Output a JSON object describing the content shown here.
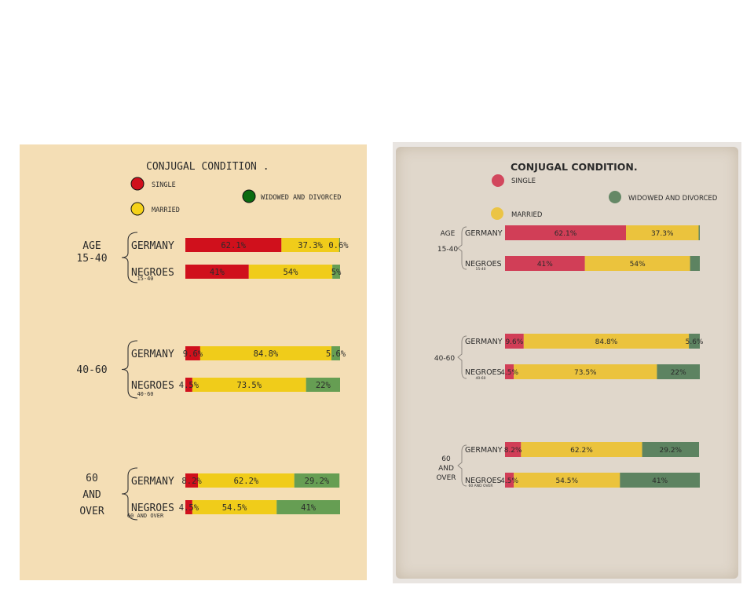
{
  "colors": {
    "single": "#d0101c",
    "married": "#f0cc1a",
    "widowed": "#669e53",
    "left_bg": "#f4deb5",
    "r_single": "#cf2e4a",
    "r_married": "#ecc12e",
    "r_widowed": "#4f7a55",
    "r_ink": "#5a5550",
    "r_paper": "#e0d7cb"
  },
  "left": {
    "title": "CONJUGAL CONDITION .",
    "legend": [
      {
        "key": "single",
        "label": "SINGLE",
        "color": "#d0101c"
      },
      {
        "key": "married",
        "label": "MARRIED",
        "color": "#f5d21a"
      },
      {
        "key": "widowed",
        "label": "WIDOWED AND DIVORCED",
        "color": "#0b6b10"
      }
    ],
    "groups": [
      {
        "label_lines": [
          "AGE",
          "15-40"
        ],
        "sublabel": "15-40"
      },
      {
        "label_lines": [
          "40-60"
        ],
        "sublabel": "40-60"
      },
      {
        "label_lines": [
          "60",
          "AND",
          "OVER"
        ],
        "sublabel": "60 AND OVER"
      }
    ]
  },
  "right": {
    "title": "CONJUGAL CONDITION.",
    "legend": [
      {
        "key": "single",
        "label": "SINGLE"
      },
      {
        "key": "widowed",
        "label": "WIDOWED AND DIVORCED"
      },
      {
        "key": "married",
        "label": "MARRIED"
      }
    ],
    "groups": [
      {
        "label_lines": [
          "AGE",
          "15-40"
        ],
        "sublabel": "15-40"
      },
      {
        "label_lines": [
          "40-60"
        ],
        "sublabel": "40-60"
      },
      {
        "label_lines": [
          "60",
          "AND",
          "OVER"
        ],
        "sublabel": "60 AND OVER"
      }
    ],
    "labels": [
      [
        "62.1%",
        "37.3%",
        ""
      ],
      [
        "41%",
        "54%",
        ""
      ],
      [
        "9.6%",
        "84.8%",
        "5.6%"
      ],
      [
        "4.5%",
        "73.5%",
        "22%"
      ],
      [
        "8.2%",
        "62.2%",
        "29.2%"
      ],
      [
        "4.5%",
        "54.5%",
        "41%"
      ]
    ]
  },
  "chart_data": [
    {
      "type": "bar",
      "title": "CONJUGAL CONDITION .",
      "stacked": true,
      "orientation": "horizontal",
      "categories": [
        "GERMANY",
        "NEGROES",
        "GERMANY",
        "NEGROES",
        "GERMANY",
        "NEGROES"
      ],
      "series": [
        {
          "name": "SINGLE",
          "values": [
            62.1,
            41,
            9.6,
            4.5,
            8.2,
            4.5
          ]
        },
        {
          "name": "MARRIED",
          "values": [
            37.3,
            54,
            84.8,
            73.5,
            62.2,
            54.5
          ]
        },
        {
          "name": "WIDOWED AND DIVORCED",
          "values": [
            0.6,
            5,
            5.6,
            22,
            29.2,
            41
          ]
        }
      ],
      "labels": [
        [
          "62.1%",
          "37.3%",
          "0.6%"
        ],
        [
          "41%",
          "54%",
          "5%"
        ],
        [
          "9.6%",
          "84.8%",
          "5.6%"
        ],
        [
          "4.5%",
          "73.5%",
          "22%"
        ],
        [
          "8.2%",
          "62.2%",
          "29.2%"
        ],
        [
          "4.5%",
          "54.5%",
          "41%"
        ]
      ]
    }
  ]
}
